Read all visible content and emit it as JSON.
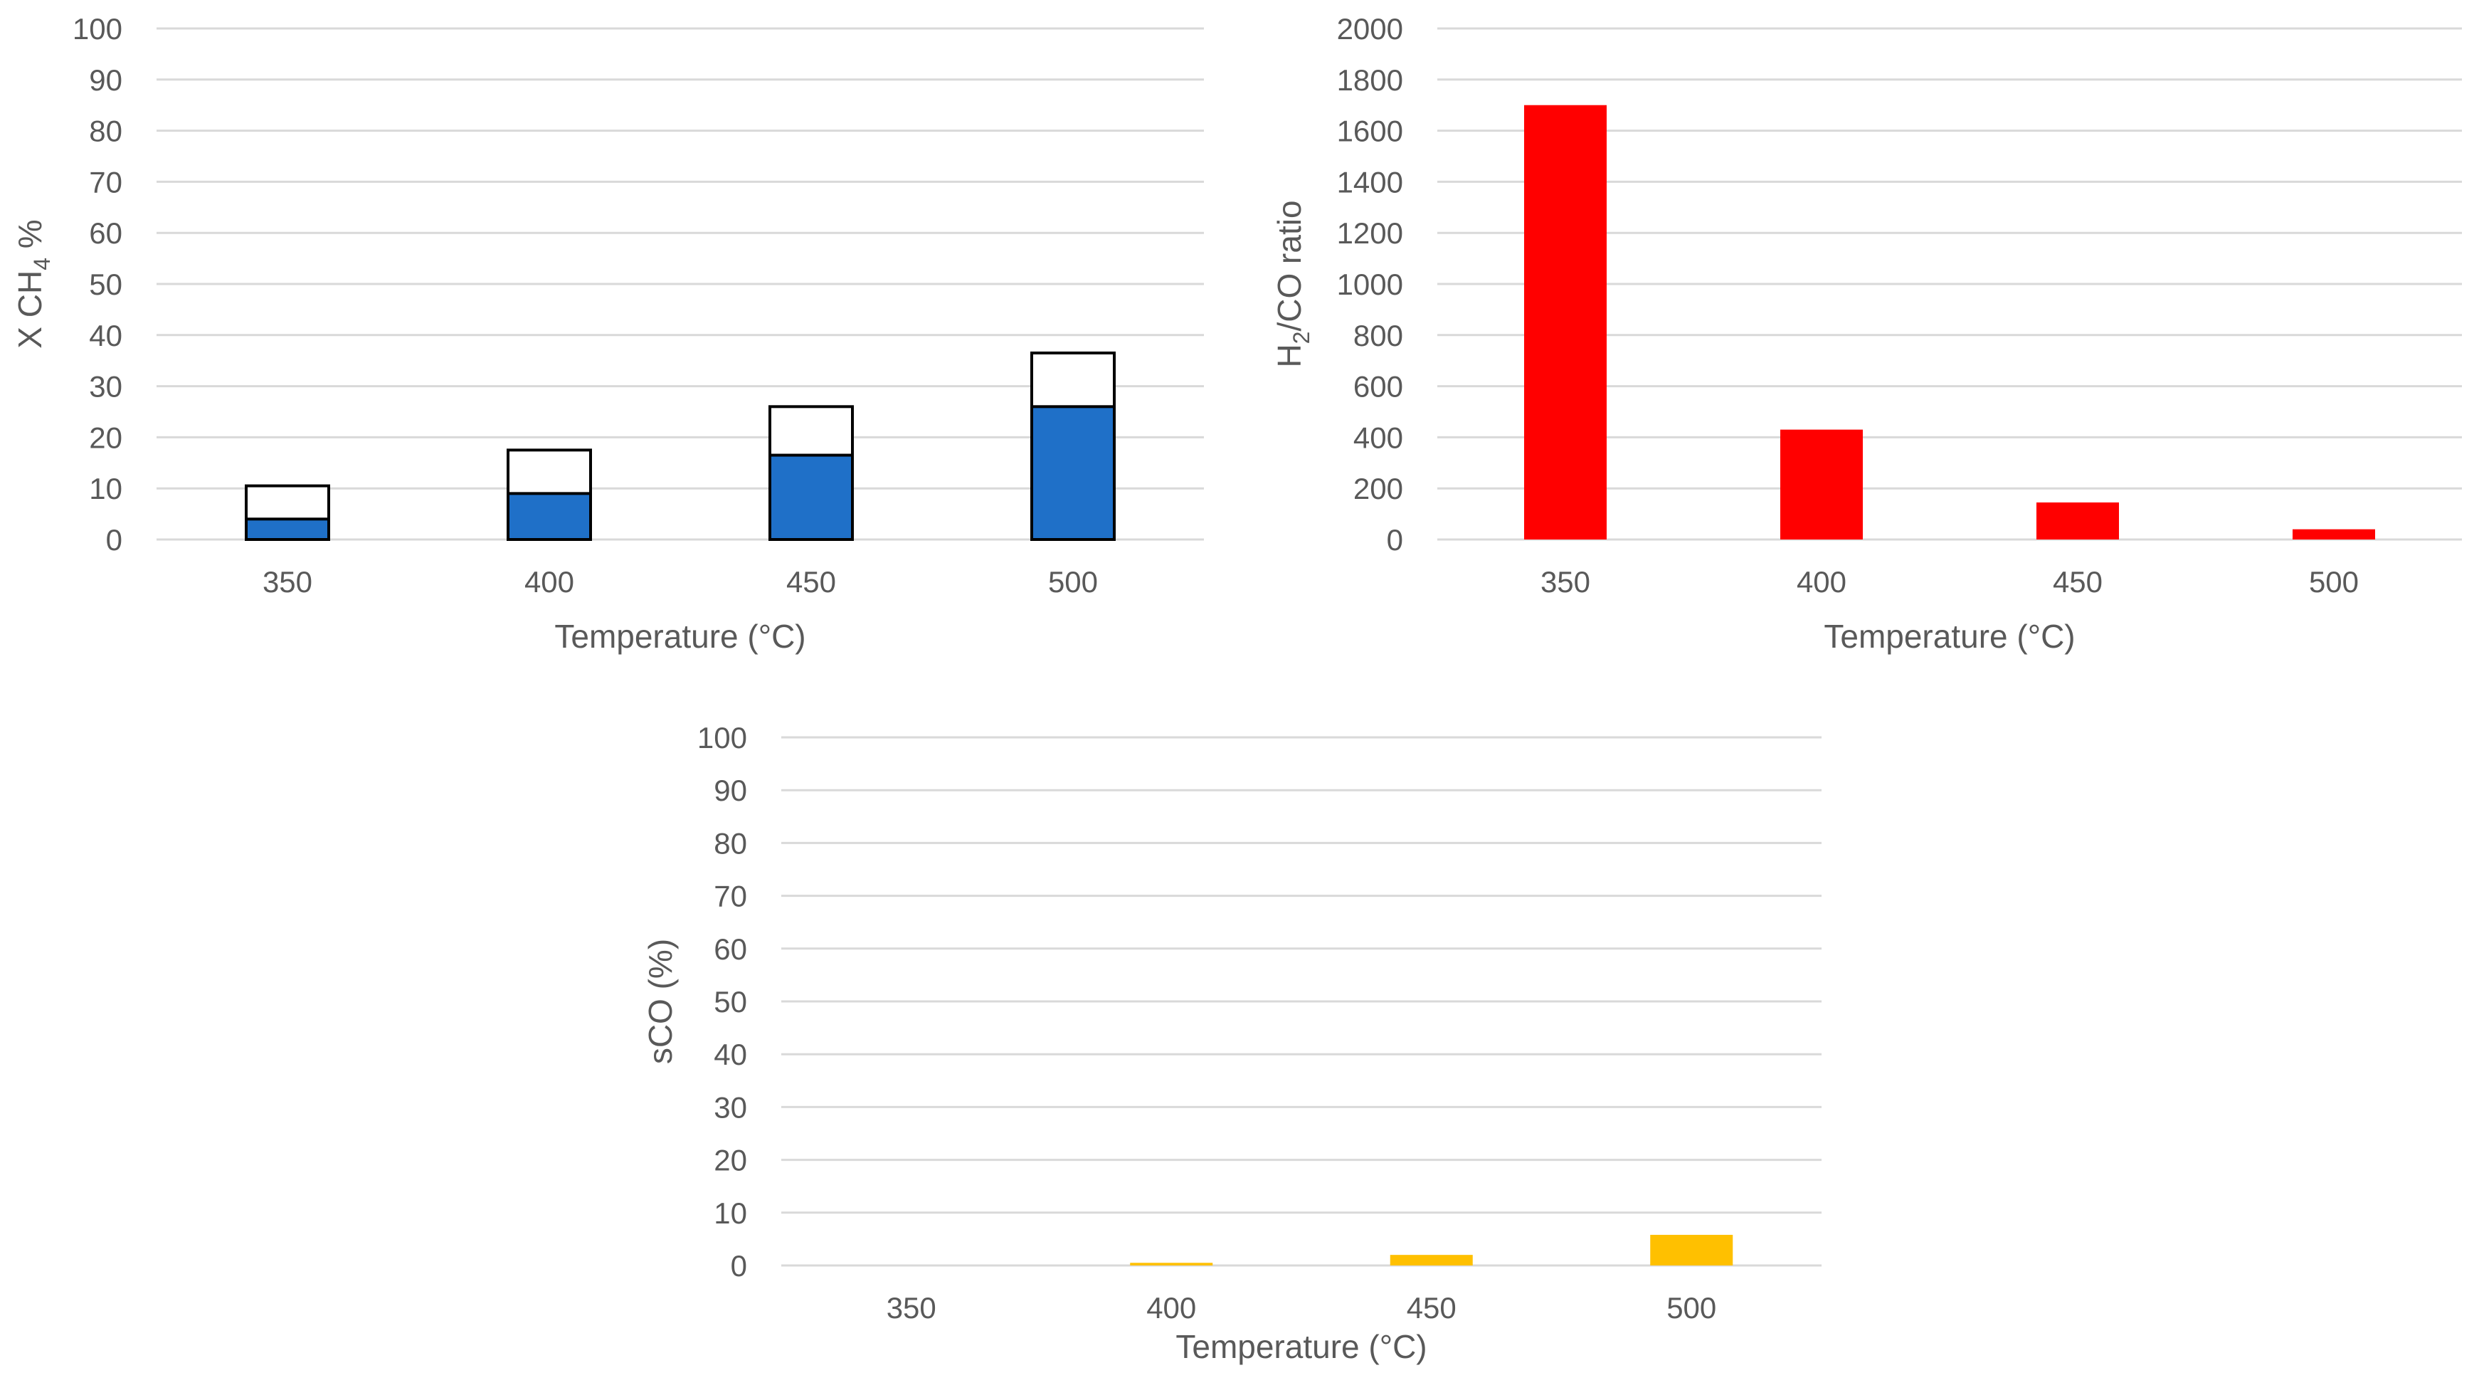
{
  "chart_data": [
    {
      "id": "xch4",
      "type": "bar",
      "variant": "overlay",
      "title": "",
      "xlabel": "Temperature (°C)",
      "ylabel": "X CH4 %",
      "ylabel_parts": {
        "pre": "X CH",
        "sub": "4",
        "post": " %"
      },
      "categories": [
        "350",
        "400",
        "450",
        "500"
      ],
      "ylim": [
        0,
        100
      ],
      "yticks": [
        0,
        10,
        20,
        30,
        40,
        50,
        60,
        70,
        80,
        90,
        100
      ],
      "grid": true,
      "series": [
        {
          "name": "outline",
          "values": [
            10.5,
            17.5,
            26,
            36.5
          ],
          "fill": "#ffffff",
          "stroke": "#000000"
        },
        {
          "name": "filled",
          "values": [
            4,
            9,
            16.5,
            26
          ],
          "fill": "#1f70c8",
          "stroke": "#000000"
        }
      ]
    },
    {
      "id": "h2co",
      "type": "bar",
      "title": "",
      "xlabel": "Temperature (°C)",
      "ylabel": "H2/CO ratio",
      "ylabel_parts": {
        "pre": "H",
        "sub": "2",
        "post": "/CO ratio"
      },
      "categories": [
        "350",
        "400",
        "450",
        "500"
      ],
      "ylim": [
        0,
        2000
      ],
      "yticks": [
        0,
        200,
        400,
        600,
        800,
        1000,
        1200,
        1400,
        1600,
        1800,
        2000
      ],
      "grid": true,
      "series": [
        {
          "name": "H2/CO ratio",
          "values": [
            1700,
            430,
            145,
            40
          ],
          "fill": "#ff0000",
          "stroke": "none"
        }
      ]
    },
    {
      "id": "sco",
      "type": "bar",
      "title": "",
      "xlabel": "Temperature (°C)",
      "ylabel": "sCO (%)",
      "ylabel_parts": {
        "pre": "sCO (%)",
        "sub": "",
        "post": ""
      },
      "categories": [
        "350",
        "400",
        "450",
        "500"
      ],
      "ylim": [
        0,
        100
      ],
      "yticks": [
        0,
        10,
        20,
        30,
        40,
        50,
        60,
        70,
        80,
        90,
        100
      ],
      "grid": true,
      "series": [
        {
          "name": "sCO",
          "values": [
            0,
            0.5,
            2,
            5.8
          ],
          "fill": "#ffc000",
          "stroke": "none"
        }
      ]
    }
  ]
}
